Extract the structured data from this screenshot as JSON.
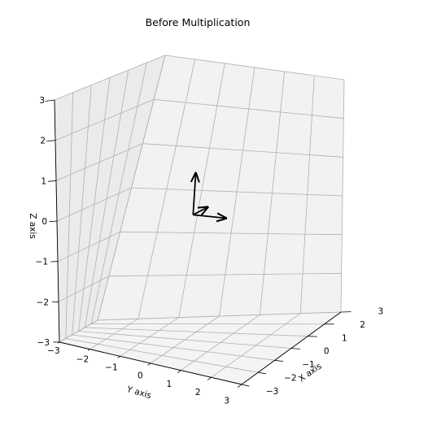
{
  "chart_data": {
    "type": "3d-quiver",
    "title": "Before Multiplication",
    "xlabel": "X axis",
    "ylabel": "Y axis",
    "zlabel": "Z axis",
    "xlim": [
      -3,
      3
    ],
    "ylim": [
      -3,
      3
    ],
    "zlim": [
      -3,
      3
    ],
    "x_ticks": [
      "−3",
      "−2",
      "−1",
      "0",
      "1",
      "2",
      "3"
    ],
    "y_ticks": [
      "−3",
      "−2",
      "−1",
      "0",
      "1",
      "2",
      "3"
    ],
    "z_ticks": [
      "−3",
      "−2",
      "−1",
      "0",
      "1",
      "2",
      "3"
    ],
    "grid": true,
    "vectors": [
      {
        "origin": [
          0,
          0,
          0
        ],
        "vector": [
          1,
          0,
          0
        ],
        "color": "#000000"
      },
      {
        "origin": [
          0,
          0,
          0
        ],
        "vector": [
          0,
          1,
          0
        ],
        "color": "#000000"
      },
      {
        "origin": [
          0,
          0,
          0
        ],
        "vector": [
          0,
          0,
          1
        ],
        "color": "#000000"
      }
    ],
    "colors": {
      "pane_back": "#f2f2f2",
      "pane_side": "#ebebeb",
      "pane_floor": "#f4f4f4",
      "grid": "#b0b0b0"
    }
  }
}
